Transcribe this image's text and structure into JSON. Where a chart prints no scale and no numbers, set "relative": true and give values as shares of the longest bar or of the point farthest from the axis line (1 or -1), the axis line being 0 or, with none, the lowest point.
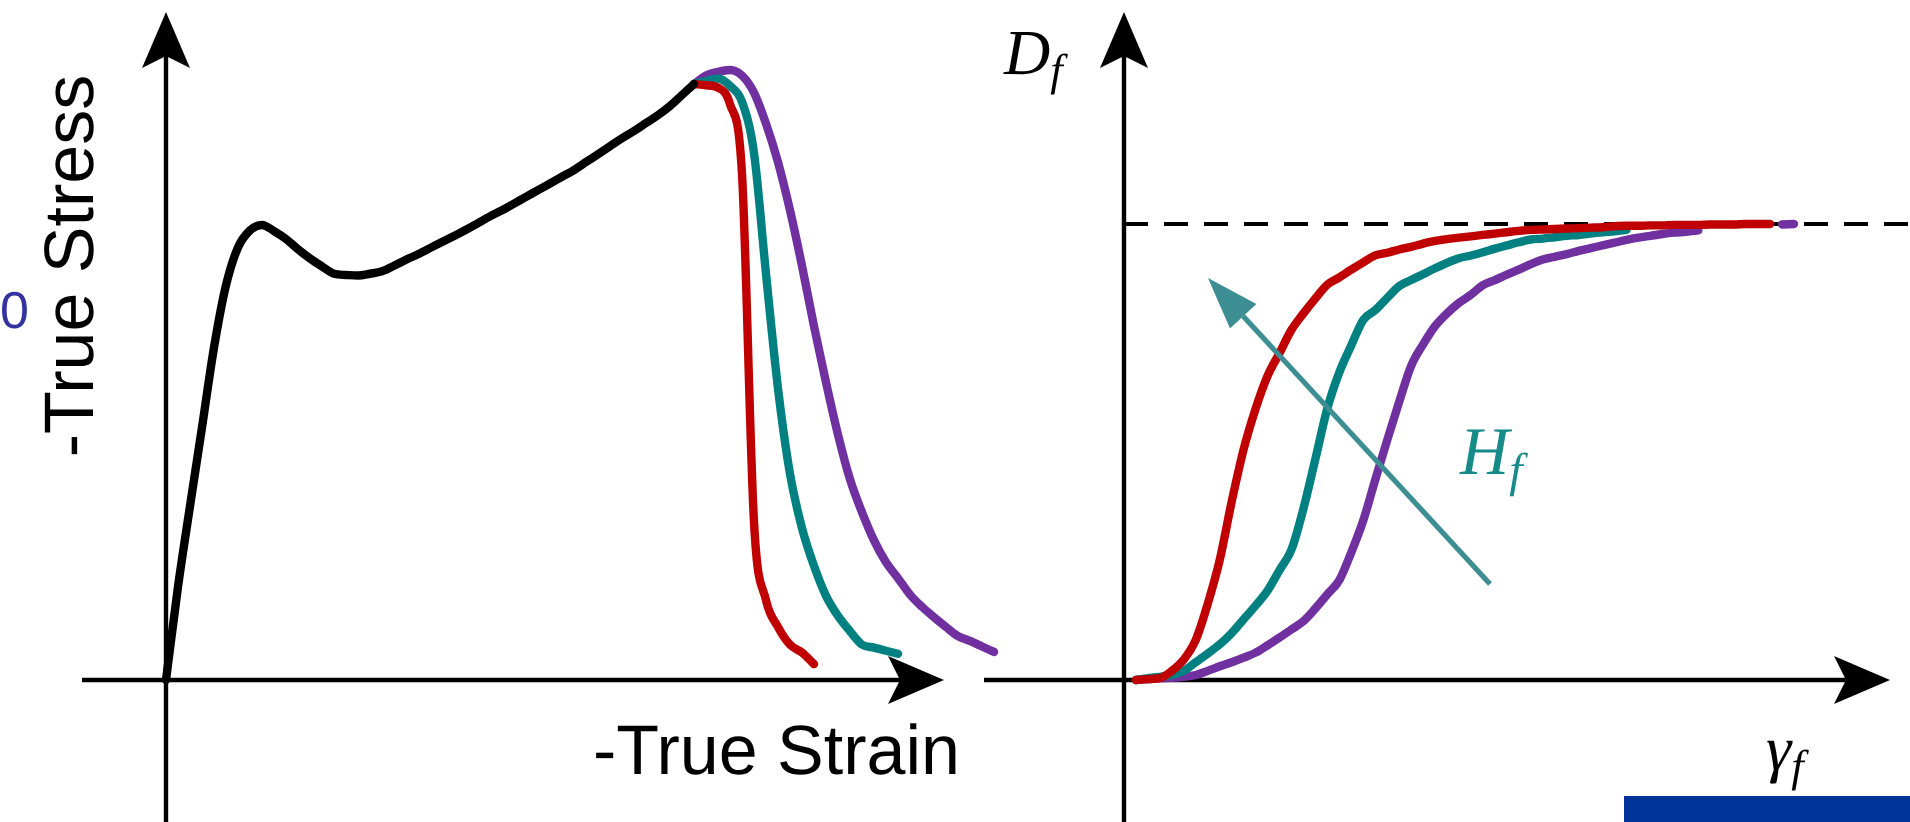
{
  "chart_data": [
    {
      "type": "line",
      "relative": true,
      "xlabel": "-True Strain",
      "ylabel": "-True Stress",
      "annotations": [
        "0"
      ],
      "categories": [
        null,
        null,
        null,
        null,
        null,
        null,
        null,
        null,
        null,
        null,
        null,
        null,
        null,
        null,
        null,
        null,
        null,
        null,
        null,
        null,
        null,
        null,
        null,
        null,
        null,
        null,
        null,
        null,
        null,
        null,
        null,
        null,
        null,
        null,
        null,
        null,
        null,
        null,
        null,
        null,
        null,
        null,
        null,
        null,
        null,
        null,
        null,
        null,
        null,
        null,
        null,
        null,
        null,
        null,
        null,
        null,
        null,
        null,
        null,
        null,
        null,
        null,
        null,
        null,
        null,
        null,
        null,
        null,
        null,
        null
      ],
      "series": [
        {
          "color": "#000000",
          "values": [
            0,
            0.153,
            0.285,
            0.414,
            0.545,
            0.647,
            0.709,
            0.737,
            0.746,
            0.736,
            0.723,
            0.706,
            0.691,
            0.678,
            0.666,
            0.664,
            0.663,
            0.666,
            0.67,
            0.679,
            0.689,
            0.698,
            0.708,
            0.718,
            0.728,
            0.738,
            0.749,
            0.76,
            0.77,
            0.781,
            0.792,
            0.803,
            0.814,
            0.825,
            0.836,
            0.849,
            0.862,
            0.875,
            0.888,
            0.9,
            0.913,
            0.926,
            0.941,
            0.959,
            0.977,
            null,
            null,
            null,
            null,
            null,
            null,
            null,
            null,
            null,
            null,
            null,
            null,
            null,
            null,
            null,
            null,
            null,
            null,
            null,
            null,
            null,
            null,
            null,
            null,
            null
          ]
        },
        {
          "color": "#c00000",
          "values": [
            null,
            null,
            null,
            null,
            null,
            null,
            null,
            null,
            null,
            null,
            null,
            null,
            null,
            null,
            null,
            null,
            null,
            null,
            null,
            null,
            null,
            null,
            null,
            null,
            null,
            null,
            null,
            null,
            null,
            null,
            null,
            null,
            null,
            null,
            null,
            null,
            null,
            null,
            null,
            null,
            null,
            null,
            null,
            null,
            0.977,
            0.975,
            0.971,
            0.944,
            0.83,
            0.259,
            0.131,
            0.087,
            0.058,
            0.045,
            0.026,
            null,
            null,
            null,
            null,
            null,
            null,
            null,
            null,
            null,
            null,
            null,
            null,
            null,
            null,
            null
          ]
        },
        {
          "color": "#008080",
          "values": [
            null,
            null,
            null,
            null,
            null,
            null,
            null,
            null,
            null,
            null,
            null,
            null,
            null,
            null,
            null,
            null,
            null,
            null,
            null,
            null,
            null,
            null,
            null,
            null,
            null,
            null,
            null,
            null,
            null,
            null,
            null,
            null,
            null,
            null,
            null,
            null,
            null,
            null,
            null,
            null,
            null,
            null,
            null,
            null,
            0.977,
            0.982,
            0.986,
            0.974,
            0.948,
            0.864,
            0.666,
            0.478,
            0.338,
            0.249,
            0.187,
            0.138,
            0.105,
            0.08,
            0.058,
            0.053,
            0.048,
            0.043,
            null,
            null,
            null,
            null,
            null,
            null,
            null,
            null
          ]
        },
        {
          "color": "#7030a0",
          "values": [
            null,
            null,
            null,
            null,
            null,
            null,
            null,
            null,
            null,
            null,
            null,
            null,
            null,
            null,
            null,
            null,
            null,
            null,
            null,
            null,
            null,
            null,
            null,
            null,
            null,
            null,
            null,
            null,
            null,
            null,
            null,
            null,
            null,
            null,
            null,
            null,
            null,
            null,
            null,
            null,
            null,
            null,
            null,
            null,
            0.977,
            0.991,
            0.997,
            1.0,
            0.991,
            0.963,
            0.912,
            0.849,
            0.77,
            0.679,
            0.58,
            0.488,
            0.402,
            0.329,
            0.275,
            0.229,
            0.193,
            0.167,
            0.14,
            0.12,
            0.103,
            0.087,
            0.072,
            0.064,
            0.055,
            0.046
          ]
        }
      ]
    },
    {
      "type": "line",
      "relative": true,
      "xlabel": "γ$_{f}$",
      "ylabel": "D$_{f}$",
      "annotations": [
        "H$_{f}$"
      ],
      "categories": [
        null,
        null,
        null,
        null,
        null,
        null,
        null,
        null,
        null,
        null,
        null,
        null,
        null,
        null,
        null,
        null,
        null,
        null,
        null,
        null,
        null,
        null,
        null,
        null,
        null,
        null,
        null,
        null,
        null,
        null,
        null,
        null,
        null,
        null,
        null,
        null,
        null,
        null,
        null,
        null,
        null,
        null,
        null,
        null,
        null,
        null,
        null,
        null,
        null,
        null,
        null,
        null,
        null,
        null,
        null,
        null,
        null
      ],
      "ref_lines": [
        {
          "axis": "y",
          "value": 1,
          "color": "#000000",
          "line_style": "dashed"
        }
      ],
      "series": [
        {
          "color": "#c00000",
          "values": [
            null,
            0,
            0.002,
            0.004,
            0.02,
            0.045,
            0.088,
            0.167,
            0.263,
            0.391,
            0.506,
            0.595,
            0.667,
            0.717,
            0.768,
            0.804,
            0.837,
            0.867,
            0.883,
            0.9,
            0.916,
            0.931,
            0.937,
            0.944,
            0.95,
            0.957,
            0.963,
            0.967,
            0.97,
            0.973,
            0.976,
            0.979,
            0.982,
            0.985,
            0.987,
            0.988,
            0.989,
            0.99,
            0.991,
            0.992,
            0.993,
            0.995,
            0.996,
            0.996,
            0.997,
            0.997,
            0.998,
            0.998,
            0.998,
            0.999,
            0.999,
            0.999,
            1.0,
            1.0,
            1.0,
            null,
            null
          ]
        },
        {
          "color": "#008080",
          "values": [
            null,
            0,
            0.004,
            0.007,
            0.011,
            0.02,
            0.039,
            0.058,
            0.078,
            0.103,
            0.133,
            0.163,
            0.196,
            0.241,
            0.286,
            0.376,
            0.485,
            0.596,
            0.675,
            0.734,
            0.79,
            0.811,
            0.838,
            0.864,
            0.877,
            0.89,
            0.903,
            0.915,
            0.925,
            0.931,
            0.938,
            0.946,
            0.953,
            0.96,
            0.966,
            0.968,
            0.971,
            0.974,
            0.976,
            0.979,
            0.982,
            0.984,
            0.987,
            null,
            null,
            null,
            null,
            null,
            null,
            null,
            null,
            null,
            null,
            null,
            null,
            null,
            null
          ]
        },
        {
          "color": "#7030a0",
          "values": [
            null,
            0,
            0.002,
            0.004,
            0.005,
            0.007,
            0.011,
            0.02,
            0.03,
            0.039,
            0.049,
            0.06,
            0.076,
            0.093,
            0.111,
            0.129,
            0.157,
            0.188,
            0.219,
            0.28,
            0.35,
            0.439,
            0.526,
            0.61,
            0.689,
            0.736,
            0.776,
            0.804,
            0.827,
            0.845,
            0.866,
            0.877,
            0.889,
            0.9,
            0.912,
            0.922,
            0.928,
            0.934,
            0.941,
            0.947,
            0.953,
            0.959,
            0.965,
            0.97,
            0.974,
            0.978,
            0.981,
            0.983,
            0.986,
            null,
            null,
            null,
            null,
            null,
            null,
            0.999,
            1.0
          ]
        }
      ]
    }
  ]
}
